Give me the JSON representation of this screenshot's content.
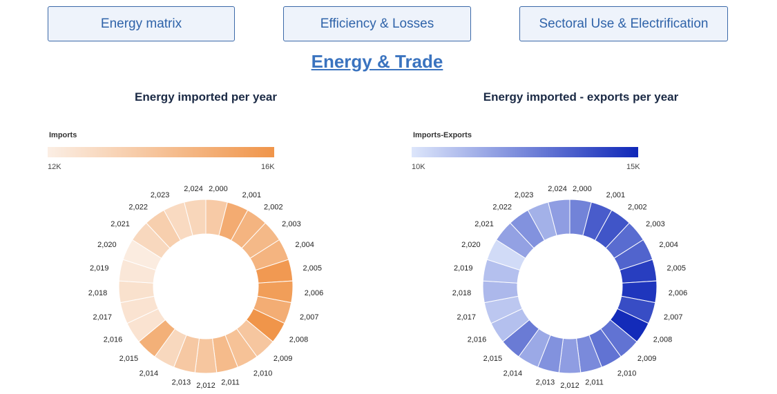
{
  "nav": {
    "buttons": [
      {
        "label": "Energy matrix"
      },
      {
        "label": "Efficiency & Losses"
      },
      {
        "label": "Sectoral Use & Electrification"
      }
    ]
  },
  "page_title": "Energy & Trade",
  "colors": {
    "imports_low": "#fbeee4",
    "imports_high": "#f0954a",
    "net_low": "#dde6fb",
    "net_high": "#0f27b8",
    "nav_border": "#3a68a8",
    "nav_text": "#2f63a9",
    "title_link": "#3a73bf"
  },
  "chart_data": [
    {
      "type": "pie",
      "title": "Energy imported per year",
      "colorbar": {
        "label": "Imports",
        "min_label": "12K",
        "max_label": "16K",
        "range": [
          12000,
          16000
        ]
      },
      "labels": [
        "2,000",
        "2,001",
        "2,002",
        "2,003",
        "2,004",
        "2,005",
        "2,006",
        "2,007",
        "2,008",
        "2,009",
        "2,010",
        "2,011",
        "2,012",
        "2,013",
        "2,014",
        "2,015",
        "2,016",
        "2,017",
        "2,018",
        "2,019",
        "2,020",
        "2,021",
        "2,022",
        "2,023",
        "2,024"
      ],
      "values": [
        13600,
        15000,
        14600,
        14400,
        14600,
        15800,
        15600,
        14900,
        16000,
        13800,
        14000,
        14300,
        13800,
        13700,
        13000,
        14800,
        12500,
        12500,
        12600,
        12300,
        12100,
        13000,
        13400,
        12900,
        13100
      ]
    },
    {
      "type": "pie",
      "title": "Energy imported - exports per year",
      "colorbar": {
        "label": "Imports-Exports",
        "min_label": "10K",
        "max_label": "15K",
        "range": [
          10000,
          15000
        ]
      },
      "labels": [
        "2,000",
        "2,001",
        "2,002",
        "2,003",
        "2,004",
        "2,005",
        "2,006",
        "2,007",
        "2,008",
        "2,009",
        "2,010",
        "2,011",
        "2,012",
        "2,013",
        "2,014",
        "2,015",
        "2,016",
        "2,017",
        "2,018",
        "2,019",
        "2,020",
        "2,021",
        "2,022",
        "2,023",
        "2,024"
      ],
      "values": [
        12600,
        13600,
        13800,
        13200,
        13400,
        14400,
        14600,
        14000,
        14900,
        13000,
        13000,
        12400,
        11900,
        12200,
        11600,
        12800,
        11000,
        10800,
        11200,
        11000,
        10300,
        11800,
        12200,
        11400,
        11900
      ]
    }
  ]
}
